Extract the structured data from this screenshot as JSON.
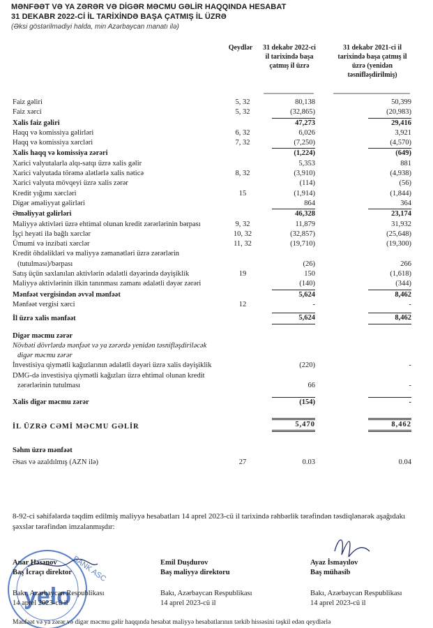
{
  "header": {
    "title_line1": "MƏNFƏƏT VƏ YA ZƏRƏR VƏ DİGƏR MƏCMU GƏLİR HAQQINDA HESABAT",
    "title_line2": "31 DEKABR 2022-Cİ İL TARİXİNDƏ BAŞA ÇATMIŞ İL ÜZRƏ",
    "subtitle": "(Əksi göstərilmədiyi halda, min Azərbaycan manatı ilə)"
  },
  "table": {
    "columns": [
      "Qeydlər",
      "31 dekabr 2022-ci il tarixində başa çatmış il üzrə",
      "31 dekabr 2021-ci il tarixində başa çatmış il üzrə (yenidən təsnifləşdirilmiş)"
    ],
    "rows": [
      {
        "label": "Faiz gəliri",
        "note": "5, 32",
        "current": "80,138",
        "prior": "50,399"
      },
      {
        "label": "Faiz xərci",
        "note": "5, 32",
        "current": "(32,865)",
        "prior": "(20,983)"
      },
      {
        "label": "Xalis faiz gəliri",
        "current": "47,273",
        "prior": "29,416"
      },
      {
        "label": "Haqq və komissiya gəlirləri",
        "note": "6, 32",
        "current": "6,026",
        "prior": "3,921"
      },
      {
        "label": "Haqq və komissiya xərcləri",
        "note": "7, 32",
        "current": "(7,250)",
        "prior": "(4,570)"
      },
      {
        "label": "Xalis haqq və komissiya zərəri",
        "current": "(1,224)",
        "prior": "(649)"
      },
      {
        "label": "Xarici valyutalarla alqı-satqı üzrə xalis gəlir",
        "current": "5,353",
        "prior": "881"
      },
      {
        "label": "Xarici valyutada törəmə alətlərlə xalis nəticə",
        "note": "8, 32",
        "current": "(3,910)",
        "prior": "(4,938)"
      },
      {
        "label": "Xarici valyuta mövqeyi üzrə xalis zərər",
        "current": "(114)",
        "prior": "(56)"
      },
      {
        "label": "Kredit yığımı xərcləri",
        "note": "15",
        "current": "(1,914)",
        "prior": "(1,844)"
      },
      {
        "label": "Digər əməliyyat gəlirləri",
        "current": "864",
        "prior": "364"
      },
      {
        "label": "Əməliyyat gəlirləri",
        "current": "46,328",
        "prior": "23,174"
      },
      {
        "label": "Maliyyə aktivləri üzrə ehtimal olunan kredit zərərlərinin bərpası",
        "note": "9, 32",
        "current": "11,879",
        "prior": "31,932"
      },
      {
        "label": "İşçi heyəti ilə bağlı xərclər",
        "note": "10, 32",
        "current": "(32,857)",
        "prior": "(25,648)"
      },
      {
        "label": "Ümumi və inzibati xərclər",
        "note": "11, 32",
        "current": "(19,710)",
        "prior": "(19,300)"
      },
      {
        "label": "Kredit öhdəlikləri və maliyyə zəmanətləri üzrə zərərlərin (tutulması)/bərpası",
        "current": "(26)",
        "prior": "266"
      },
      {
        "label": "Satış üçün saxlanılan aktivlərin ədalətli dəyərində dəyişiklik",
        "note": "19",
        "current": "150",
        "prior": "(1,618)"
      },
      {
        "label": "Maliyyə aktivlərinin ilkin tanınması zamanı ədalətli dəyər zərəri",
        "current": "(140)",
        "prior": "(344)"
      },
      {
        "label": "Mənfəət vergisindən əvvəl mənfəət",
        "current": "5,624",
        "prior": "8,462"
      },
      {
        "label": "Mənfəət vergisi xərci",
        "note": "12",
        "current": "-",
        "prior": "-"
      },
      {
        "label": "İl üzrə xalis mənfəət",
        "current": "5,624",
        "prior": "8,462"
      },
      {
        "label": "Digər məcmu zərər"
      },
      {
        "label": "Növbəti dövrlərdə mənfəət və ya zərərdə yenidən təsnifləşdiriləcək digər məcmu zərər"
      },
      {
        "label": "İnvestisiya qiymətli kağızlarının ədalətli dəyəri üzrə xalis dəyişiklik",
        "current": "(220)",
        "prior": "-"
      },
      {
        "label": "DMG-də investisiya qiymətli kağızları üzrə ehtimal olunan kredit zərərlərinin tutulması",
        "current": "66",
        "prior": "-"
      },
      {
        "label": "Xalis digər məcmu zərər",
        "current": "(154)",
        "prior": "-"
      },
      {
        "label": "İL ÜZRƏ CƏMİ MƏCMU GƏLİR",
        "current": "5,470",
        "prior": "8,462"
      },
      {
        "label": "Səhm üzrə mənfəət"
      },
      {
        "label": "Əsas və azaldılmış (AZN ilə)",
        "note": "27",
        "current": "0.03",
        "prior": "0.04"
      }
    ]
  },
  "approval_text": "8-92-ci səhifələrdə təqdim edilmiş maliyyə hesabatları 14 aprel 2023-cü il tarixində rəhbərlik tərəfindən təsdiqlənərək aşağıdakı şəxslər tərəfindən imzalanmışdır:",
  "signatories": [
    {
      "name": "Anar Həsənov",
      "position": "Baş İcraçı direktor",
      "place": "Bakı, Azərbaycan Respublikası",
      "date": "14 aprel 2023-cü il"
    },
    {
      "name": "Emil Duşdurov",
      "position": "Baş maliyyə direktoru",
      "place": "Bakı, Azərbaycan Respublikası",
      "date": "14 aprel 2023-cü il"
    },
    {
      "name": "Ayaz İsmayılov",
      "position": "Baş mühasib",
      "place": "Bakı, Azərbaycan Respublikası",
      "date": "14 aprel 2023-cü il"
    }
  ],
  "stamp": {
    "text": "BANK ASC",
    "logo": "yelo"
  },
  "footnote": "Mənfəət və ya zərər və digər məcmu gəlir haqqında hesabat maliyyə hesabatlarının tərkib hissəsini təşkil edən qeydlərlə"
}
